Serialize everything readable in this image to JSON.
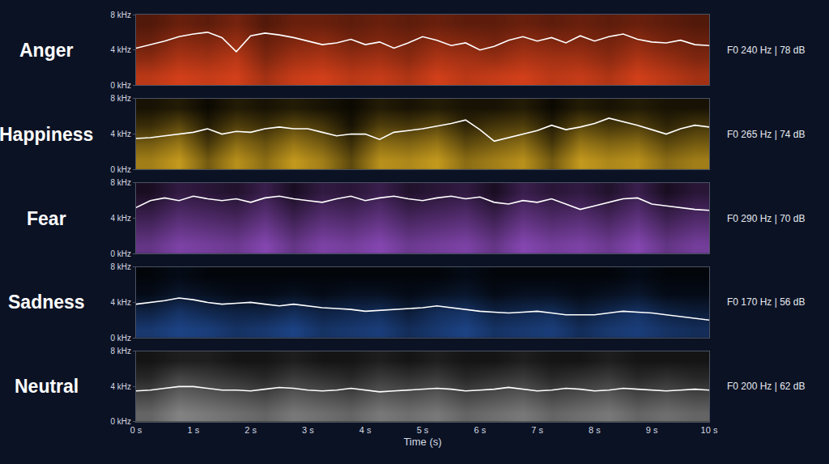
{
  "chart_data": [
    {
      "type": "line",
      "title": "Anger",
      "color": "#e8461c",
      "tick_labels": "y",
      "annotations": [
        "F0 240 Hz | 78 dB"
      ],
      "xlim": [
        0,
        10
      ],
      "ylim": [
        0,
        8
      ],
      "zlim": [
        0,
        1
      ],
      "yticks": [
        {
          "value": 0,
          "label": "0 kHz"
        },
        {
          "value": 4,
          "label": "4 kHz"
        },
        {
          "value": 8,
          "label": "8 kHz"
        }
      ],
      "x": [
        0,
        0.25,
        0.5,
        0.75,
        1,
        1.25,
        1.5,
        1.75,
        2,
        2.25,
        2.5,
        2.75,
        3,
        3.25,
        3.5,
        3.75,
        4,
        4.25,
        4.5,
        4.75,
        5,
        5.25,
        5.5,
        5.75,
        6,
        6.25,
        6.5,
        6.75,
        7,
        7.25,
        7.5,
        7.75,
        8,
        8.25,
        8.5,
        8.75,
        9,
        9.25,
        9.5,
        9.75,
        10
      ],
      "series": [
        {
          "color": "#ffffff",
          "values": [
            4.2,
            4.6,
            5.0,
            5.5,
            5.8,
            6.0,
            5.4,
            3.8,
            5.6,
            5.9,
            5.7,
            5.4,
            5.0,
            4.6,
            4.8,
            5.2,
            4.6,
            4.9,
            4.2,
            4.8,
            5.5,
            5.1,
            4.5,
            4.8,
            4.0,
            4.4,
            5.1,
            5.5,
            5.0,
            5.4,
            4.8,
            5.6,
            5.0,
            5.5,
            5.8,
            5.2,
            4.9,
            4.8,
            5.1,
            4.6,
            4.5
          ]
        }
      ],
      "cells": [
        [
          0.8,
          0.9,
          0.85,
          0.9,
          0.7,
          0.85,
          0.9,
          0.8,
          0.85,
          0.75,
          0.9,
          0.8,
          0.85,
          0.9,
          0.8,
          0.85,
          0.75,
          0.9,
          0.8,
          0.7
        ],
        [
          0.6,
          0.75,
          0.7,
          0.8,
          0.55,
          0.7,
          0.75,
          0.65,
          0.7,
          0.6,
          0.75,
          0.7,
          0.65,
          0.75,
          0.7,
          0.7,
          0.6,
          0.75,
          0.65,
          0.55
        ],
        [
          0.45,
          0.6,
          0.55,
          0.65,
          0.45,
          0.55,
          0.6,
          0.5,
          0.55,
          0.5,
          0.6,
          0.55,
          0.5,
          0.6,
          0.55,
          0.55,
          0.5,
          0.6,
          0.5,
          0.45
        ],
        [
          0.35,
          0.45,
          0.4,
          0.5,
          0.35,
          0.45,
          0.45,
          0.4,
          0.45,
          0.4,
          0.45,
          0.4,
          0.4,
          0.45,
          0.4,
          0.45,
          0.4,
          0.45,
          0.4,
          0.35
        ]
      ]
    },
    {
      "type": "line",
      "title": "Happiness",
      "color": "#e6b422",
      "tick_labels": "y",
      "annotations": [
        "F0 265 Hz | 74 dB"
      ],
      "xlim": [
        0,
        10
      ],
      "ylim": [
        0,
        8
      ],
      "zlim": [
        0,
        1
      ],
      "yticks": [
        {
          "value": 0,
          "label": "0 kHz"
        },
        {
          "value": 4,
          "label": "4 kHz"
        },
        {
          "value": 8,
          "label": "8 kHz"
        }
      ],
      "x": [
        0,
        0.25,
        0.5,
        0.75,
        1,
        1.25,
        1.5,
        1.75,
        2,
        2.25,
        2.5,
        2.75,
        3,
        3.25,
        3.5,
        3.75,
        4,
        4.25,
        4.5,
        4.75,
        5,
        5.25,
        5.5,
        5.75,
        6,
        6.25,
        6.5,
        6.75,
        7,
        7.25,
        7.5,
        7.75,
        8,
        8.25,
        8.5,
        8.75,
        9,
        9.25,
        9.5,
        9.75,
        10
      ],
      "series": [
        {
          "color": "#ffffff",
          "values": [
            3.5,
            3.6,
            3.8,
            4.0,
            4.2,
            4.6,
            4.0,
            4.3,
            4.2,
            4.6,
            4.8,
            4.6,
            4.6,
            4.2,
            3.8,
            4.0,
            4.0,
            3.4,
            4.2,
            4.4,
            4.6,
            4.9,
            5.2,
            5.6,
            4.5,
            3.2,
            3.6,
            4.0,
            4.4,
            5.0,
            4.5,
            4.8,
            5.2,
            5.8,
            5.4,
            5.0,
            4.5,
            4.0,
            4.6,
            5.0,
            4.8
          ]
        }
      ],
      "cells": [
        [
          0.7,
          0.85,
          0.5,
          0.8,
          0.6,
          0.85,
          0.7,
          0.4,
          0.8,
          0.75,
          0.85,
          0.6,
          0.7,
          0.8,
          0.5,
          0.85,
          0.75,
          0.8,
          0.6,
          0.7
        ],
        [
          0.5,
          0.65,
          0.3,
          0.6,
          0.45,
          0.65,
          0.5,
          0.25,
          0.6,
          0.55,
          0.65,
          0.4,
          0.5,
          0.6,
          0.3,
          0.65,
          0.55,
          0.6,
          0.4,
          0.5
        ],
        [
          0.25,
          0.4,
          0.15,
          0.35,
          0.25,
          0.4,
          0.3,
          0.1,
          0.35,
          0.3,
          0.4,
          0.2,
          0.3,
          0.35,
          0.15,
          0.4,
          0.3,
          0.35,
          0.2,
          0.3
        ],
        [
          0.1,
          0.15,
          0.05,
          0.15,
          0.1,
          0.15,
          0.1,
          0.05,
          0.15,
          0.1,
          0.15,
          0.1,
          0.1,
          0.15,
          0.05,
          0.15,
          0.1,
          0.15,
          0.1,
          0.1
        ]
      ]
    },
    {
      "type": "line",
      "title": "Fear",
      "color": "#a558dc",
      "tick_labels": "y",
      "annotations": [
        "F0 290 Hz | 70 dB"
      ],
      "xlim": [
        0,
        10
      ],
      "ylim": [
        0,
        8
      ],
      "zlim": [
        0,
        1
      ],
      "yticks": [
        {
          "value": 0,
          "label": "0 kHz"
        },
        {
          "value": 4,
          "label": "4 kHz"
        },
        {
          "value": 8,
          "label": "8 kHz"
        }
      ],
      "x": [
        0,
        0.25,
        0.5,
        0.75,
        1,
        1.25,
        1.5,
        1.75,
        2,
        2.25,
        2.5,
        2.75,
        3,
        3.25,
        3.5,
        3.75,
        4,
        4.25,
        4.5,
        4.75,
        5,
        5.25,
        5.5,
        5.75,
        6,
        6.25,
        6.5,
        6.75,
        7,
        7.25,
        7.5,
        7.75,
        8,
        8.25,
        8.5,
        8.75,
        9,
        9.25,
        9.5,
        9.75,
        10
      ],
      "series": [
        {
          "color": "#ffffff",
          "values": [
            5.2,
            6.0,
            6.3,
            6.0,
            6.5,
            6.2,
            6.0,
            6.2,
            5.8,
            6.3,
            6.5,
            6.2,
            6.0,
            5.8,
            6.2,
            6.5,
            6.0,
            6.3,
            6.5,
            6.2,
            6.0,
            6.3,
            6.5,
            6.2,
            6.4,
            5.8,
            5.6,
            6.0,
            5.8,
            6.2,
            5.6,
            5.0,
            5.4,
            5.8,
            6.2,
            6.3,
            5.6,
            5.4,
            5.2,
            5.0,
            4.9
          ]
        }
      ],
      "cells": [
        [
          0.6,
          0.75,
          0.7,
          0.65,
          0.8,
          0.6,
          0.75,
          0.7,
          0.8,
          0.65,
          0.7,
          0.75,
          0.6,
          0.8,
          0.7,
          0.75,
          0.65,
          0.8,
          0.6,
          0.7
        ],
        [
          0.45,
          0.6,
          0.55,
          0.5,
          0.65,
          0.45,
          0.6,
          0.55,
          0.65,
          0.5,
          0.55,
          0.6,
          0.45,
          0.65,
          0.55,
          0.6,
          0.5,
          0.65,
          0.45,
          0.55
        ],
        [
          0.3,
          0.45,
          0.4,
          0.35,
          0.5,
          0.3,
          0.45,
          0.4,
          0.5,
          0.35,
          0.4,
          0.45,
          0.3,
          0.5,
          0.4,
          0.45,
          0.35,
          0.5,
          0.3,
          0.4
        ],
        [
          0.15,
          0.3,
          0.25,
          0.2,
          0.35,
          0.15,
          0.3,
          0.25,
          0.35,
          0.2,
          0.25,
          0.3,
          0.15,
          0.35,
          0.25,
          0.3,
          0.2,
          0.35,
          0.15,
          0.25
        ]
      ]
    },
    {
      "type": "line",
      "title": "Sadness",
      "color": "#2f6fdc",
      "tick_labels": "y",
      "annotations": [
        "F0 170 Hz | 56 dB"
      ],
      "xlim": [
        0,
        10
      ],
      "ylim": [
        0,
        8
      ],
      "zlim": [
        0,
        1
      ],
      "yticks": [
        {
          "value": 0,
          "label": "0 kHz"
        },
        {
          "value": 4,
          "label": "4 kHz"
        },
        {
          "value": 8,
          "label": "8 kHz"
        }
      ],
      "x": [
        0,
        0.25,
        0.5,
        0.75,
        1,
        1.25,
        1.5,
        1.75,
        2,
        2.25,
        2.5,
        2.75,
        3,
        3.25,
        3.5,
        3.75,
        4,
        4.25,
        4.5,
        4.75,
        5,
        5.25,
        5.5,
        5.75,
        6,
        6.25,
        6.5,
        6.75,
        7,
        7.25,
        7.5,
        7.75,
        8,
        8.25,
        8.5,
        8.75,
        9,
        9.25,
        9.5,
        9.75,
        10
      ],
      "series": [
        {
          "color": "#ffffff",
          "values": [
            3.8,
            4.0,
            4.2,
            4.5,
            4.3,
            4.0,
            3.8,
            3.9,
            4.0,
            3.8,
            3.6,
            3.8,
            3.6,
            3.4,
            3.3,
            3.2,
            3.0,
            3.1,
            3.2,
            3.3,
            3.4,
            3.6,
            3.4,
            3.2,
            3.0,
            2.9,
            2.8,
            2.9,
            3.0,
            2.8,
            2.6,
            2.6,
            2.6,
            2.8,
            3.0,
            2.9,
            2.8,
            2.6,
            2.4,
            2.2,
            2.0
          ]
        }
      ],
      "cells": [
        [
          0.5,
          0.6,
          0.55,
          0.45,
          0.5,
          0.6,
          0.45,
          0.5,
          0.55,
          0.4,
          0.5,
          0.6,
          0.45,
          0.5,
          0.55,
          0.4,
          0.5,
          0.55,
          0.45,
          0.4
        ],
        [
          0.3,
          0.45,
          0.35,
          0.3,
          0.3,
          0.4,
          0.3,
          0.35,
          0.4,
          0.25,
          0.4,
          0.45,
          0.3,
          0.35,
          0.4,
          0.25,
          0.35,
          0.45,
          0.3,
          0.25
        ],
        [
          0.1,
          0.2,
          0.15,
          0.1,
          0.1,
          0.15,
          0.1,
          0.15,
          0.15,
          0.1,
          0.15,
          0.2,
          0.1,
          0.15,
          0.15,
          0.1,
          0.15,
          0.2,
          0.1,
          0.1
        ],
        [
          0.05,
          0.1,
          0.05,
          0.05,
          0.05,
          0.05,
          0.05,
          0.05,
          0.05,
          0.05,
          0.05,
          0.1,
          0.05,
          0.05,
          0.05,
          0.05,
          0.05,
          0.1,
          0.05,
          0.05
        ]
      ]
    },
    {
      "type": "line",
      "title": "Neutral",
      "color": "#c8c8c8",
      "annotations": [
        "F0 200 Hz | 62 dB"
      ],
      "xlabel": "Time (s)",
      "xlim": [
        0,
        10
      ],
      "ylim": [
        0,
        8
      ],
      "zlim": [
        0,
        1
      ],
      "xticks": [
        {
          "value": 0,
          "label": "0 s"
        },
        {
          "value": 1,
          "label": "1 s"
        },
        {
          "value": 2,
          "label": "2 s"
        },
        {
          "value": 3,
          "label": "3 s"
        },
        {
          "value": 4,
          "label": "4 s"
        },
        {
          "value": 5,
          "label": "5 s"
        },
        {
          "value": 6,
          "label": "6 s"
        },
        {
          "value": 7,
          "label": "7 s"
        },
        {
          "value": 8,
          "label": "8 s"
        },
        {
          "value": 9,
          "label": "9 s"
        },
        {
          "value": 10,
          "label": "10 s"
        }
      ],
      "yticks": [
        {
          "value": 0,
          "label": "0 kHz"
        },
        {
          "value": 4,
          "label": "4 kHz"
        },
        {
          "value": 8,
          "label": "8 kHz"
        }
      ],
      "x": [
        0,
        0.25,
        0.5,
        0.75,
        1,
        1.25,
        1.5,
        1.75,
        2,
        2.25,
        2.5,
        2.75,
        3,
        3.25,
        3.5,
        3.75,
        4,
        4.25,
        4.5,
        4.75,
        5,
        5.25,
        5.5,
        5.75,
        6,
        6.25,
        6.5,
        6.75,
        7,
        7.25,
        7.5,
        7.75,
        8,
        8.25,
        8.5,
        8.75,
        9,
        9.25,
        9.5,
        9.75,
        10
      ],
      "series": [
        {
          "color": "#ffffff",
          "values": [
            3.5,
            3.6,
            3.8,
            4.0,
            4.0,
            3.8,
            3.6,
            3.6,
            3.5,
            3.7,
            3.9,
            3.8,
            3.6,
            3.5,
            3.6,
            3.8,
            3.6,
            3.4,
            3.5,
            3.6,
            3.7,
            3.8,
            3.7,
            3.5,
            3.6,
            3.7,
            3.9,
            3.7,
            3.5,
            3.6,
            3.8,
            3.7,
            3.5,
            3.6,
            3.8,
            3.7,
            3.6,
            3.5,
            3.6,
            3.7,
            3.6
          ]
        }
      ],
      "cells": [
        [
          0.5,
          0.65,
          0.6,
          0.55,
          0.5,
          0.6,
          0.55,
          0.5,
          0.6,
          0.55,
          0.6,
          0.5,
          0.55,
          0.6,
          0.5,
          0.55,
          0.6,
          0.5,
          0.55,
          0.5
        ],
        [
          0.35,
          0.5,
          0.45,
          0.4,
          0.35,
          0.45,
          0.4,
          0.35,
          0.45,
          0.4,
          0.45,
          0.35,
          0.4,
          0.45,
          0.35,
          0.4,
          0.45,
          0.35,
          0.4,
          0.35
        ],
        [
          0.2,
          0.35,
          0.3,
          0.25,
          0.2,
          0.3,
          0.25,
          0.2,
          0.3,
          0.25,
          0.3,
          0.2,
          0.25,
          0.3,
          0.2,
          0.25,
          0.3,
          0.2,
          0.25,
          0.2
        ],
        [
          0.1,
          0.15,
          0.15,
          0.1,
          0.1,
          0.15,
          0.1,
          0.1,
          0.15,
          0.1,
          0.15,
          0.1,
          0.1,
          0.15,
          0.1,
          0.1,
          0.15,
          0.1,
          0.1,
          0.1
        ]
      ]
    }
  ]
}
